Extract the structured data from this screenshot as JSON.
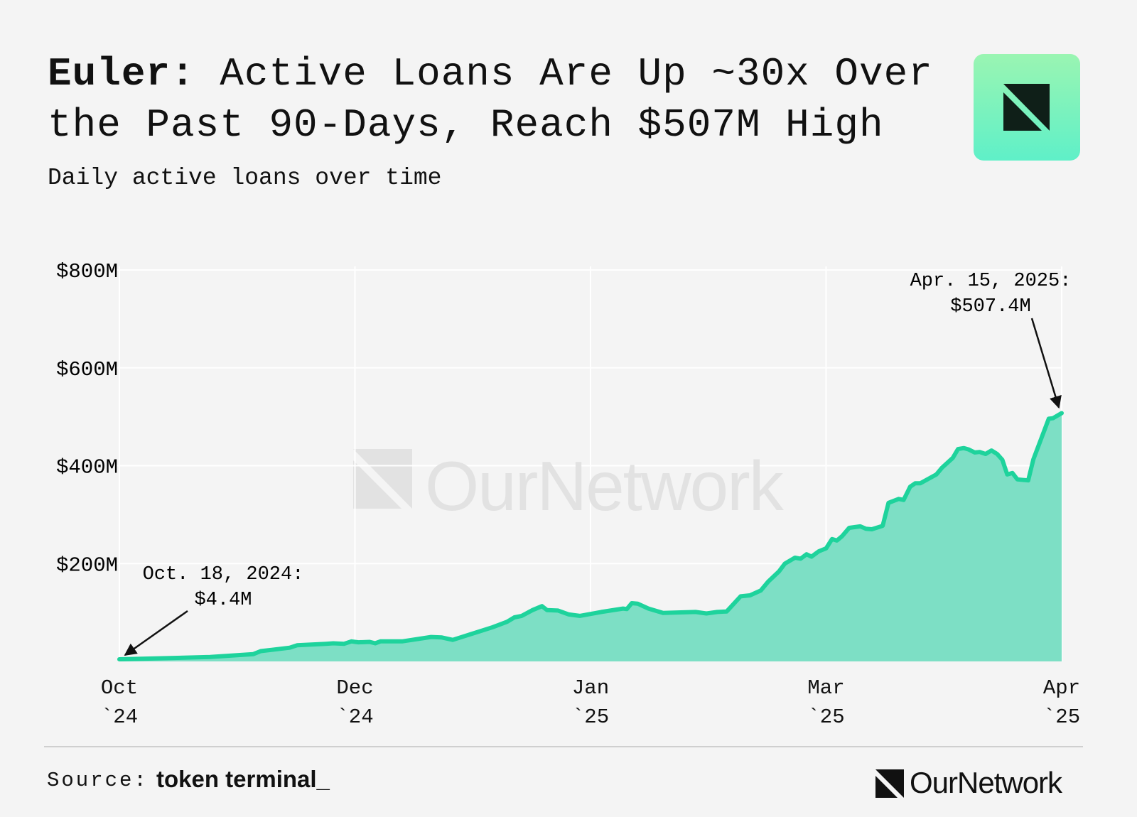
{
  "chart_data": {
    "type": "area",
    "title_lead": "Euler:",
    "title": "Active Loans Are Up ~30x Over the Past 90-Days, Reach $507M High",
    "subtitle": "Daily active loans over time",
    "watermark": "OurNetwork",
    "source_label": "Source:",
    "source": "token terminal_",
    "brand": "OurNetwork",
    "color": "#1ed39c",
    "fill": "#7ddfc5",
    "grid": true,
    "xlim": [
      0,
      4
    ],
    "xticks": [
      {
        "value": 0,
        "label": "Oct\n`24"
      },
      {
        "value": 1,
        "label": "Dec\n`24"
      },
      {
        "value": 2,
        "label": "Jan\n`25"
      },
      {
        "value": 3,
        "label": "Mar\n`25"
      },
      {
        "value": 4,
        "label": "Apr\n`25"
      }
    ],
    "ylim": [
      0,
      800
    ],
    "yticks": [
      {
        "value": 200,
        "label": "$200M"
      },
      {
        "value": 400,
        "label": "$400M"
      },
      {
        "value": 600,
        "label": "$600M"
      },
      {
        "value": 800,
        "label": "$800M"
      }
    ],
    "annotations": [
      {
        "text": "Oct. 18, 2024:",
        "label": "$4.4M"
      },
      {
        "text": "Apr. 15, 2025:",
        "label": "$507.4M"
      }
    ],
    "x": [
      0,
      0.385,
      0.569,
      0.6,
      0.723,
      0.754,
      0.877,
      0.908,
      0.954,
      0.985,
      1.015,
      1.062,
      1.086,
      1.108,
      1.2,
      1.323,
      1.369,
      1.415,
      1.585,
      1.646,
      1.677,
      1.708,
      1.754,
      1.794,
      1.815,
      1.862,
      1.908,
      1.954,
      2.046,
      2.138,
      2.154,
      2.175,
      2.2,
      2.246,
      2.308,
      2.446,
      2.492,
      2.538,
      2.578,
      2.637,
      2.677,
      2.723,
      2.754,
      2.8,
      2.825,
      2.868,
      2.892,
      2.917,
      2.938,
      2.969,
      3,
      3.025,
      3.046,
      3.068,
      3.098,
      3.145,
      3.169,
      3.194,
      3.24,
      3.265,
      3.308,
      3.329,
      3.357,
      3.378,
      3.4,
      3.468,
      3.492,
      3.538,
      3.56,
      3.585,
      3.606,
      3.631,
      3.652,
      3.677,
      3.702,
      3.726,
      3.748,
      3.769,
      3.791,
      3.812,
      3.858,
      3.88,
      3.945,
      3.963,
      4
    ],
    "values": [
      4.4,
      9,
      15,
      21,
      28,
      33,
      36,
      37,
      36,
      41,
      39,
      40,
      37,
      41,
      41,
      50,
      49,
      44,
      70,
      81,
      90,
      93,
      105,
      113,
      105,
      104,
      96,
      93,
      101,
      108,
      107,
      119,
      118,
      108,
      99,
      101,
      98,
      101,
      102,
      133,
      135,
      145,
      163,
      184,
      200,
      212,
      210,
      219,
      214,
      225,
      231,
      250,
      247,
      256,
      273,
      276,
      271,
      270,
      277,
      324,
      332,
      330,
      357,
      364,
      364,
      382,
      396,
      416,
      434,
      436,
      433,
      427,
      428,
      424,
      431,
      424,
      412,
      382,
      385,
      372,
      370,
      413,
      496,
      497,
      507.4
    ]
  }
}
